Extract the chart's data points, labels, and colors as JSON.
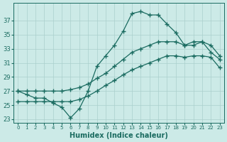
{
  "xlabel": "Humidex (Indice chaleur)",
  "bg_color": "#cceae7",
  "grid_color": "#aacfcc",
  "line_color": "#1a6b60",
  "hours": [
    0,
    1,
    2,
    3,
    4,
    5,
    6,
    7,
    8,
    9,
    10,
    11,
    12,
    13,
    14,
    15,
    16,
    17,
    18,
    19,
    20,
    21,
    22,
    23
  ],
  "line1": [
    27.0,
    26.5,
    26.0,
    26.0,
    25.3,
    24.7,
    23.2,
    24.5,
    27.0,
    30.5,
    32.0,
    33.5,
    35.5,
    38.0,
    38.3,
    37.8,
    37.8,
    36.5,
    35.3,
    33.5,
    33.5,
    34.0,
    32.5,
    31.5
  ],
  "line2": [
    27.0,
    27.0,
    27.0,
    27.0,
    27.0,
    27.0,
    27.2,
    27.5,
    28.0,
    28.8,
    29.5,
    30.5,
    31.5,
    32.5,
    33.0,
    33.5,
    34.0,
    34.0,
    34.0,
    33.5,
    34.0,
    34.0,
    33.5,
    32.0
  ],
  "line3": [
    25.5,
    25.5,
    25.5,
    25.5,
    25.5,
    25.5,
    25.5,
    25.8,
    26.3,
    27.0,
    27.8,
    28.5,
    29.3,
    30.0,
    30.5,
    31.0,
    31.5,
    32.0,
    32.0,
    31.8,
    32.0,
    32.0,
    31.8,
    30.3
  ],
  "ylim": [
    22.5,
    39.5
  ],
  "yticks": [
    23,
    25,
    27,
    29,
    31,
    33,
    35,
    37
  ],
  "xlim": [
    -0.5,
    23.5
  ],
  "xticks": [
    0,
    1,
    2,
    3,
    4,
    5,
    6,
    7,
    8,
    9,
    10,
    11,
    12,
    13,
    14,
    15,
    16,
    17,
    18,
    19,
    20,
    21,
    22,
    23
  ]
}
